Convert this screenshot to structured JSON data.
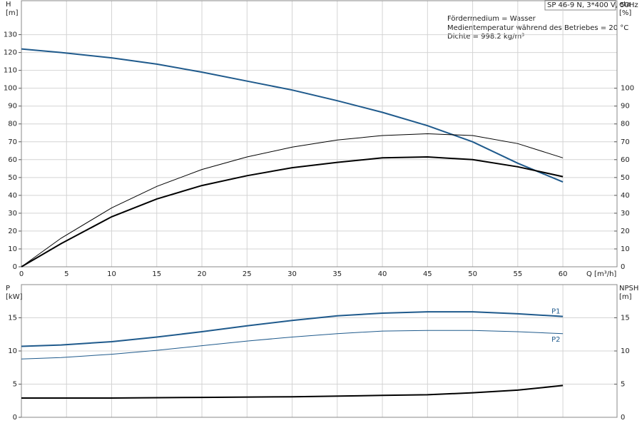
{
  "chart_data": [
    {
      "type": "line",
      "ylabel": [
        "H",
        "[m]"
      ],
      "y2label": [
        "eta",
        "[%]"
      ],
      "xlabel": "Q [m³/h]",
      "annotations": [
        "SP 46-9 N, 3*400 V, 50Hz",
        "Fördermedium = Wasser",
        "Medientemperatur während des Betriebes = 20 °C",
        "Dichte = 998.2 kg/m³"
      ],
      "xlim": [
        0,
        66
      ],
      "xticks": [
        0,
        5,
        10,
        15,
        20,
        25,
        30,
        35,
        40,
        45,
        50,
        55,
        60
      ],
      "ylim": [
        0,
        149
      ],
      "yticks": [
        0,
        10,
        20,
        30,
        40,
        50,
        60,
        70,
        80,
        90,
        100,
        110,
        120,
        130
      ],
      "y2lim": [
        0,
        149
      ],
      "y2ticks": [
        0,
        10,
        20,
        30,
        40,
        50,
        60,
        70,
        80,
        90,
        100
      ],
      "grid": true,
      "series": [
        {
          "color": "#1f5a8c",
          "width": 2,
          "x": [
            0,
            4.4,
            10,
            15,
            20,
            25,
            30,
            35,
            40,
            45,
            50,
            55,
            60
          ],
          "values": [
            122,
            120,
            117,
            113.5,
            109,
            104,
            99,
            93,
            86.5,
            79,
            70,
            58,
            47.5
          ]
        },
        {
          "color": "#000000",
          "width": 1,
          "axis": "y2",
          "x": [
            0,
            4.4,
            10,
            15,
            20,
            25,
            30,
            35,
            40,
            45,
            50,
            55,
            60
          ],
          "values": [
            0,
            16,
            33,
            45,
            54.5,
            61.5,
            67,
            71,
            73.5,
            74.5,
            73.5,
            69,
            61
          ]
        },
        {
          "color": "#000000",
          "width": 2,
          "axis": "y2",
          "x": [
            0,
            4.4,
            10,
            15,
            20,
            25,
            30,
            35,
            40,
            45,
            50,
            55,
            60
          ],
          "values": [
            0,
            13,
            28,
            38,
            45.5,
            51,
            55.5,
            58.5,
            61,
            61.5,
            60,
            56,
            50.5
          ]
        }
      ]
    },
    {
      "type": "line",
      "ylabel": [
        "P",
        "[kW]"
      ],
      "y2label": [
        "NPSH",
        "[m]"
      ],
      "xlim": [
        0,
        66
      ],
      "ylim": [
        0,
        20
      ],
      "yticks": [
        0,
        5,
        10,
        15
      ],
      "y2lim": [
        0,
        20
      ],
      "y2ticks": [
        0,
        5,
        10,
        15
      ],
      "grid": true,
      "series": [
        {
          "name": "P1",
          "color": "#1f5a8c",
          "width": 2,
          "x": [
            0,
            4.4,
            10,
            15,
            20,
            25,
            30,
            35,
            40,
            45,
            50,
            55,
            60
          ],
          "values": [
            10.7,
            10.9,
            11.4,
            12.1,
            12.9,
            13.8,
            14.6,
            15.3,
            15.7,
            15.9,
            15.9,
            15.6,
            15.2
          ]
        },
        {
          "name": "P2",
          "color": "#1f5a8c",
          "width": 1,
          "x": [
            0,
            4.4,
            10,
            15,
            20,
            25,
            30,
            35,
            40,
            45,
            50,
            55,
            60
          ],
          "values": [
            8.8,
            9.0,
            9.5,
            10.1,
            10.8,
            11.5,
            12.1,
            12.6,
            13.0,
            13.1,
            13.1,
            12.9,
            12.6
          ]
        },
        {
          "color": "#000000",
          "width": 2,
          "axis": "y2",
          "x": [
            0,
            4.4,
            10,
            20,
            30,
            40,
            45,
            50,
            55,
            60
          ],
          "values": [
            2.9,
            2.9,
            2.9,
            3.0,
            3.1,
            3.3,
            3.4,
            3.7,
            4.1,
            4.8
          ]
        }
      ]
    }
  ]
}
